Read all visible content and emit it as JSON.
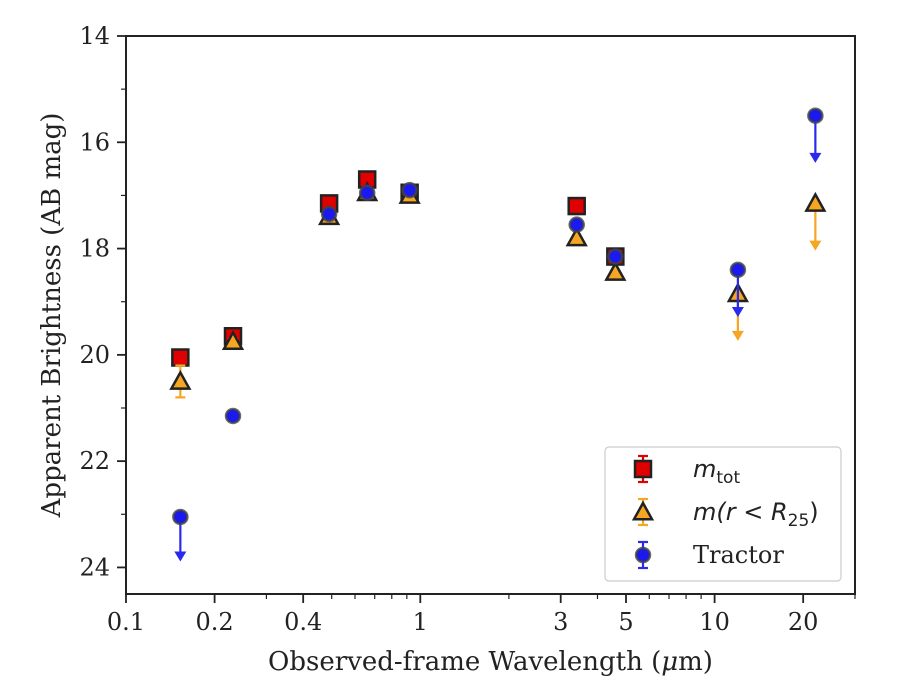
{
  "chart_data": {
    "type": "scatter",
    "xlabel_pre": "Observed-frame Wavelength (",
    "xlabel_mu": "μ",
    "xlabel_post": "m)",
    "ylabel": "Apparent Brightness (AB mag)",
    "xscale": "log",
    "xlim": [
      0.1,
      30
    ],
    "ylim": [
      24.5,
      14
    ],
    "y_inverted": true,
    "grid": false,
    "legend_position": "lower-right",
    "x_major_ticks": [
      0.1,
      0.2,
      0.4,
      1,
      3,
      5,
      10,
      20
    ],
    "x_tick_labels": [
      "0.1",
      "0.2",
      "0.4",
      "1",
      "3",
      "5",
      "10",
      "20"
    ],
    "x_minor_ticks": [
      0.3,
      0.5,
      0.6,
      0.7,
      0.8,
      0.9,
      2,
      4,
      6,
      7,
      8,
      9,
      30
    ],
    "y_major_ticks": [
      14,
      16,
      18,
      20,
      22,
      24
    ],
    "y_tick_labels": [
      "14",
      "16",
      "18",
      "20",
      "22",
      "24"
    ],
    "y_minor_ticks": [
      15,
      17,
      19,
      21,
      23
    ],
    "series": [
      {
        "key": "mtot",
        "legend_parts": [
          "m",
          "tot"
        ],
        "marker": "square",
        "color": "#e00000",
        "err_color": "#e00000",
        "points": [
          {
            "x": 0.153,
            "y": 20.05,
            "err": 0.06
          },
          {
            "x": 0.231,
            "y": 19.65,
            "err": 0.04
          },
          {
            "x": 0.49,
            "y": 17.15,
            "err": 0.02
          },
          {
            "x": 0.66,
            "y": 16.7,
            "err": 0.02
          },
          {
            "x": 0.92,
            "y": 16.95,
            "err": 0.02
          },
          {
            "x": 3.4,
            "y": 17.2,
            "err": 0.02
          },
          {
            "x": 4.6,
            "y": 18.15,
            "err": 0.02
          }
        ]
      },
      {
        "key": "mr25",
        "legend_parts": [
          "m(r < R",
          "25",
          ")"
        ],
        "marker": "triangle",
        "color": "#f5a623",
        "err_color": "#f5a623",
        "points": [
          {
            "x": 0.153,
            "y": 20.5,
            "err": 0.3
          },
          {
            "x": 0.231,
            "y": 19.75,
            "err": 0.05
          },
          {
            "x": 0.49,
            "y": 17.4,
            "err": 0.02
          },
          {
            "x": 0.66,
            "y": 16.95,
            "err": 0.02
          },
          {
            "x": 0.92,
            "y": 17.0,
            "err": 0.02
          },
          {
            "x": 3.4,
            "y": 17.8,
            "err": 0.02
          },
          {
            "x": 4.6,
            "y": 18.45,
            "err": 0.03
          },
          {
            "x": 12.0,
            "y": 18.85,
            "err": 0,
            "upper_limit_to": 19.7
          },
          {
            "x": 22.0,
            "y": 17.15,
            "err": 0,
            "upper_limit_to": 18.0
          }
        ]
      },
      {
        "key": "tractor",
        "legend_parts": [
          "Tractor"
        ],
        "marker": "circle",
        "color": "#1a1aee",
        "err_color": "#2a2aee",
        "points": [
          {
            "x": 0.153,
            "y": 23.05,
            "err": 0,
            "upper_limit_to": 23.85
          },
          {
            "x": 0.231,
            "y": 21.15,
            "err": 0
          },
          {
            "x": 0.49,
            "y": 17.35,
            "err": 0.02
          },
          {
            "x": 0.66,
            "y": 16.95,
            "err": 0.02
          },
          {
            "x": 0.92,
            "y": 16.9,
            "err": 0.02
          },
          {
            "x": 3.4,
            "y": 17.55,
            "err": 0.02
          },
          {
            "x": 4.6,
            "y": 18.15,
            "err": 0.02
          },
          {
            "x": 12.0,
            "y": 18.4,
            "err": 0,
            "upper_limit_to": 19.25
          },
          {
            "x": 22.0,
            "y": 15.5,
            "err": 0,
            "upper_limit_to": 16.35
          }
        ]
      }
    ]
  }
}
